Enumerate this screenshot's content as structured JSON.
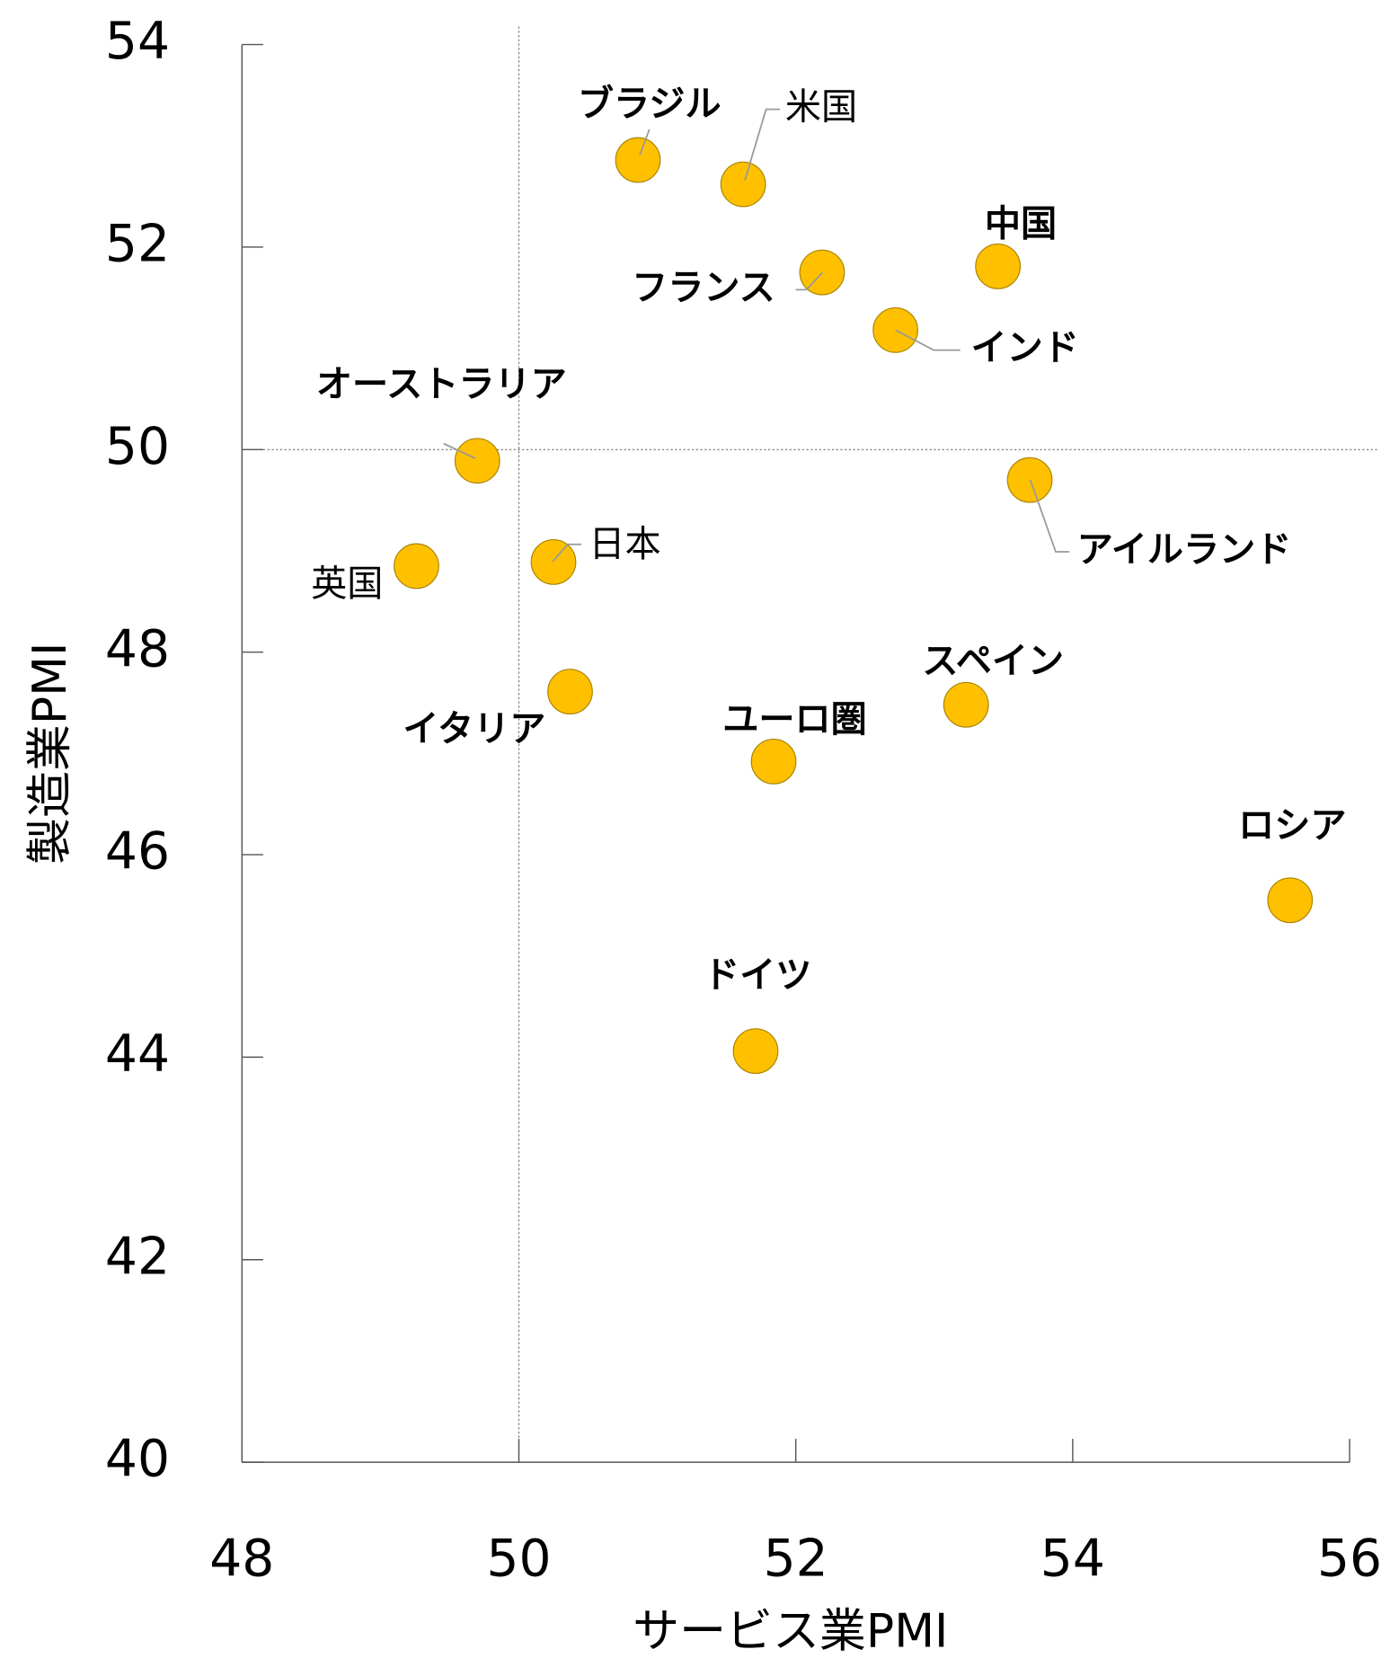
{
  "chart_data": {
    "type": "scatter",
    "xlabel": "サービス業PMI",
    "ylabel": "製造業PMI",
    "labels": [
      "ブラジル",
      "米国",
      "中国",
      "フランス",
      "インド",
      "オーストラリア",
      "アイルランド",
      "日本",
      "英国",
      "イタリア",
      "スペイン",
      "ユーロ圏",
      "ロシア",
      "ドイツ"
    ],
    "x": [
      50.86,
      51.62,
      53.46,
      52.19,
      52.72,
      49.7,
      53.69,
      50.25,
      49.26,
      50.37,
      53.23,
      51.84,
      55.57,
      51.71
    ],
    "values": [
      52.86,
      52.62,
      51.81,
      51.75,
      51.18,
      49.89,
      49.7,
      48.89,
      48.85,
      47.61,
      47.48,
      46.92,
      45.55,
      44.06
    ],
    "color": "#FFC000",
    "xlim": [
      48,
      56
    ],
    "xticks": [
      48,
      50,
      52,
      54,
      56
    ],
    "ylim": [
      40,
      54
    ],
    "yticks": [
      40,
      42,
      44,
      46,
      48,
      50,
      52,
      54
    ],
    "xref": 50,
    "yref": 50
  }
}
